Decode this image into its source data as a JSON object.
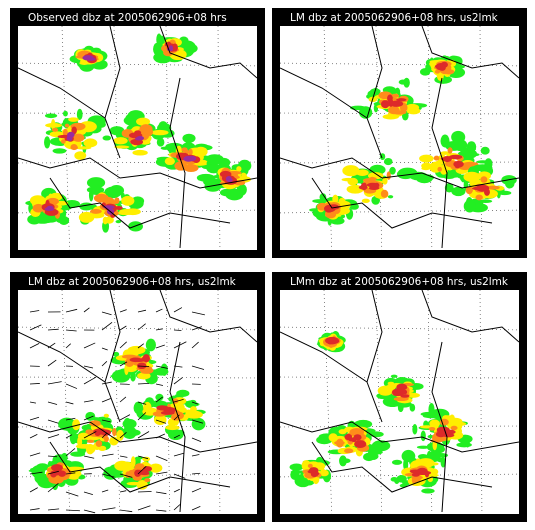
{
  "panels": [
    {
      "title": "Observed dbz at 2005062906+08 hrs"
    },
    {
      "title": "LM dbz at 2005062906+08 hrs, us2lmk"
    },
    {
      "title": "LM dbz at 2005062906+08 hrs, us2lmk"
    },
    {
      "title": "LMm dbz at 2005062906+08 hrs, us2lmk"
    }
  ]
}
